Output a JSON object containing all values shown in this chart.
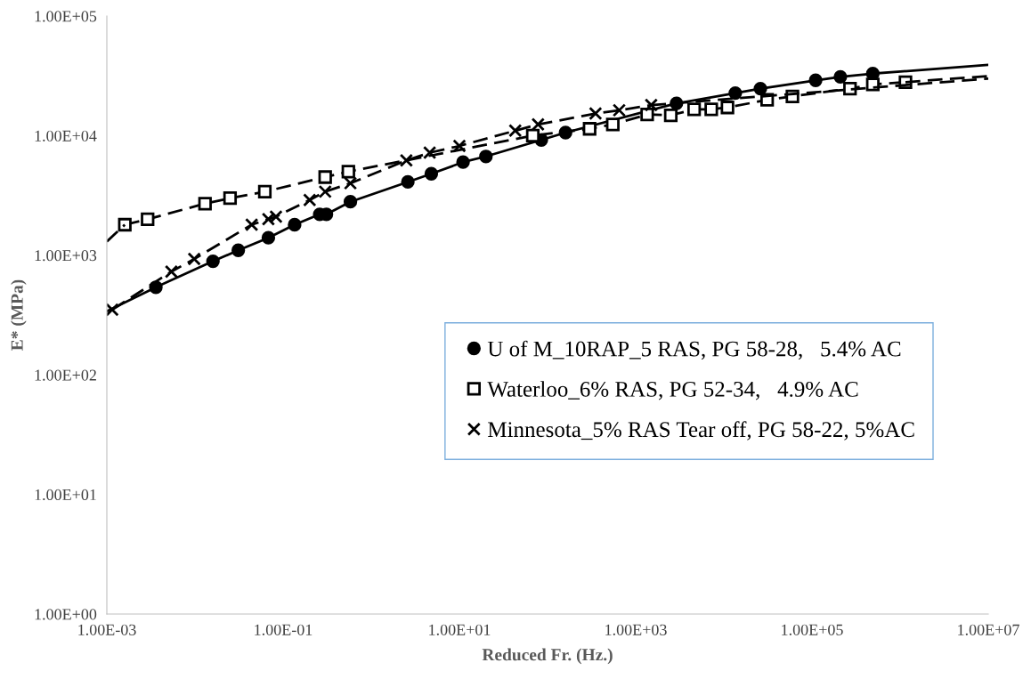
{
  "chart_data": {
    "type": "line",
    "xlabel": "Reduced Fr. (Hz.)",
    "ylabel": "E* (MPa)",
    "log": "xy",
    "xlim": [
      0.001,
      10000000
    ],
    "ylim": [
      1,
      100000
    ],
    "xticks": [
      {
        "value": 0.001,
        "label": "1.00E-03"
      },
      {
        "value": 0.1,
        "label": "1.00E-01"
      },
      {
        "value": 10,
        "label": "1.00E+01"
      },
      {
        "value": 1000,
        "label": "1.00E+03"
      },
      {
        "value": 100000,
        "label": "1.00E+05"
      },
      {
        "value": 10000000,
        "label": "1.00E+07"
      }
    ],
    "yticks": [
      {
        "value": 1,
        "label": "1.00E+00"
      },
      {
        "value": 10,
        "label": "1.00E+01"
      },
      {
        "value": 100,
        "label": "1.00E+02"
      },
      {
        "value": 1000,
        "label": "1.00E+03"
      },
      {
        "value": 10000,
        "label": "1.00E+04"
      },
      {
        "value": 100000,
        "label": "1.00E+05"
      }
    ],
    "grid": false,
    "legend": "bottom right",
    "series": [
      {
        "name": "U of M_10RAP_5 RAS, PG 58-28,   5.4% AC",
        "marker": "circle",
        "line_style": "solid",
        "color": "#000000",
        "x": [
          0.0036,
          0.016,
          0.031,
          0.068,
          0.135,
          0.26,
          0.31,
          0.58,
          2.6,
          4.8,
          11,
          20,
          85,
          160,
          2900,
          13500,
          26000,
          110000,
          210000,
          490000
        ],
        "values": [
          540,
          890,
          1100,
          1400,
          1800,
          2200,
          2200,
          2800,
          4100,
          4800,
          6000,
          6700,
          9200,
          10600,
          18600,
          22700,
          24700,
          29000,
          31000,
          33000
        ]
      },
      {
        "name": "Waterloo_6% RAS, PG 52-34,   4.9% AC",
        "marker": "square",
        "line_style": "dashed",
        "color": "#000000",
        "x": [
          0.0016,
          0.0029,
          0.013,
          0.025,
          0.062,
          0.3,
          0.55,
          68,
          300,
          550,
          1350,
          2500,
          4600,
          7200,
          11000,
          31000,
          60000,
          270000,
          490000,
          1150000
        ],
        "values": [
          1800,
          2000,
          2700,
          3000,
          3400,
          4500,
          5000,
          10000,
          11400,
          12400,
          15000,
          14800,
          16600,
          16600,
          17200,
          19900,
          21300,
          24700,
          26800,
          28000
        ]
      },
      {
        "name": "Minnesota_5% RAS Tear off, PG 58-22, 5%AC",
        "marker": "cross",
        "line_style": "dashed",
        "color": "#000000",
        "x": [
          0.00115,
          0.0054,
          0.0098,
          0.044,
          0.068,
          0.083,
          0.2,
          0.3,
          0.58,
          2.5,
          4.6,
          10,
          43,
          78,
          350,
          650,
          1500
        ],
        "values": [
          350,
          730,
          930,
          1800,
          2000,
          2100,
          2900,
          3400,
          4000,
          6200,
          7200,
          8200,
          11000,
          12400,
          15300,
          16300,
          18000
        ]
      },
      {
        "marker": "none",
        "line_style": "solid",
        "color": "#000000",
        "x": [
          0.001,
          0.0036
        ],
        "values": [
          340,
          540
        ]
      },
      {
        "marker": "none",
        "line_style": "solid",
        "color": "#000000",
        "x": [
          490000,
          10000000
        ],
        "values": [
          33000,
          39000
        ]
      },
      {
        "marker": "none",
        "line_style": "dashed",
        "color": "#000000",
        "x": [
          0.001,
          0.0016
        ],
        "values": [
          1300,
          1800
        ]
      },
      {
        "marker": "none",
        "line_style": "dashed",
        "color": "#000000",
        "x": [
          1150000,
          10000000
        ],
        "values": [
          28000,
          31500
        ]
      },
      {
        "marker": "none",
        "line_style": "dashed",
        "color": "#000000",
        "x": [
          1500,
          10000000
        ],
        "values": [
          18000,
          30000
        ]
      }
    ]
  }
}
